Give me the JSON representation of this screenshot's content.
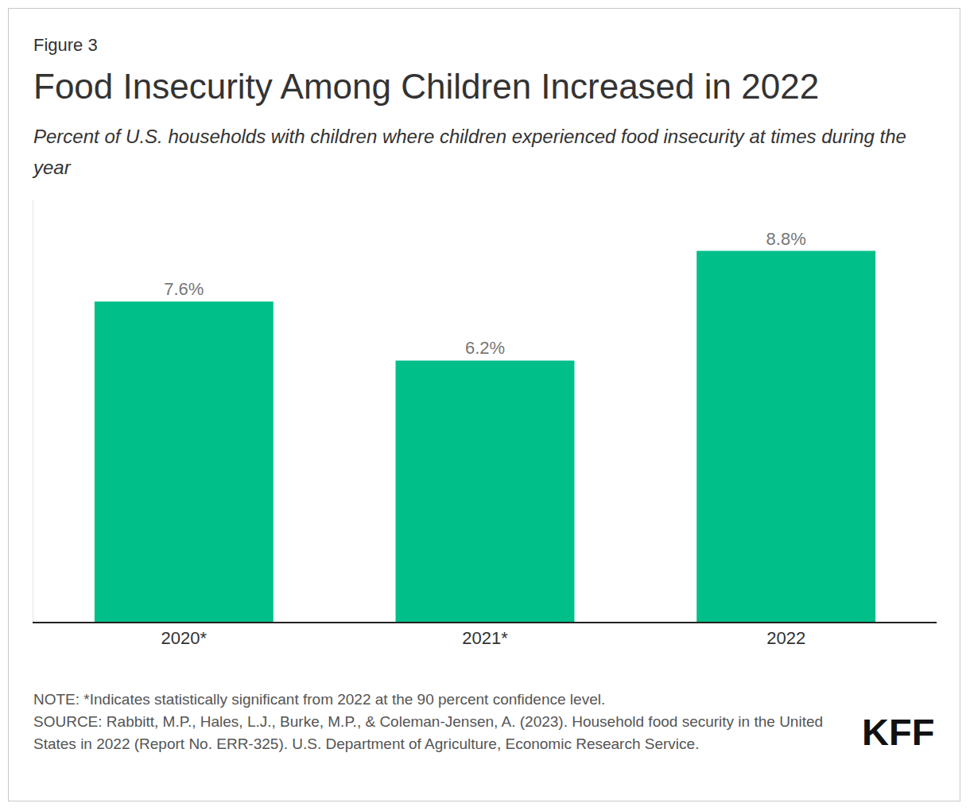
{
  "chart_data": {
    "type": "bar",
    "label": "Figure 3",
    "title": "Food Insecurity Among Children Increased in 2022",
    "subtitle": "Percent of U.S. households with children where children experienced food insecurity at times during the year",
    "categories": [
      "2020*",
      "2021*",
      "2022"
    ],
    "values": [
      7.6,
      6.2,
      8.8
    ],
    "value_labels": [
      "7.6%",
      "6.2%",
      "8.8%"
    ],
    "color": "#00bf89",
    "ylim": [
      0,
      10
    ],
    "grid": false,
    "data_labels": true,
    "tick_labels": "x",
    "note": "NOTE: *Indicates statistically significant from 2022 at the 90 percent confidence level.",
    "source": "SOURCE: Rabbitt, M.P., Hales, L.J., Burke, M.P., & Coleman-Jensen, A. (2023). Household food security in the United States in 2022 (Report No. ERR-325). U.S. Department of Agriculture, Economic Research Service.",
    "logo": "KFF"
  }
}
